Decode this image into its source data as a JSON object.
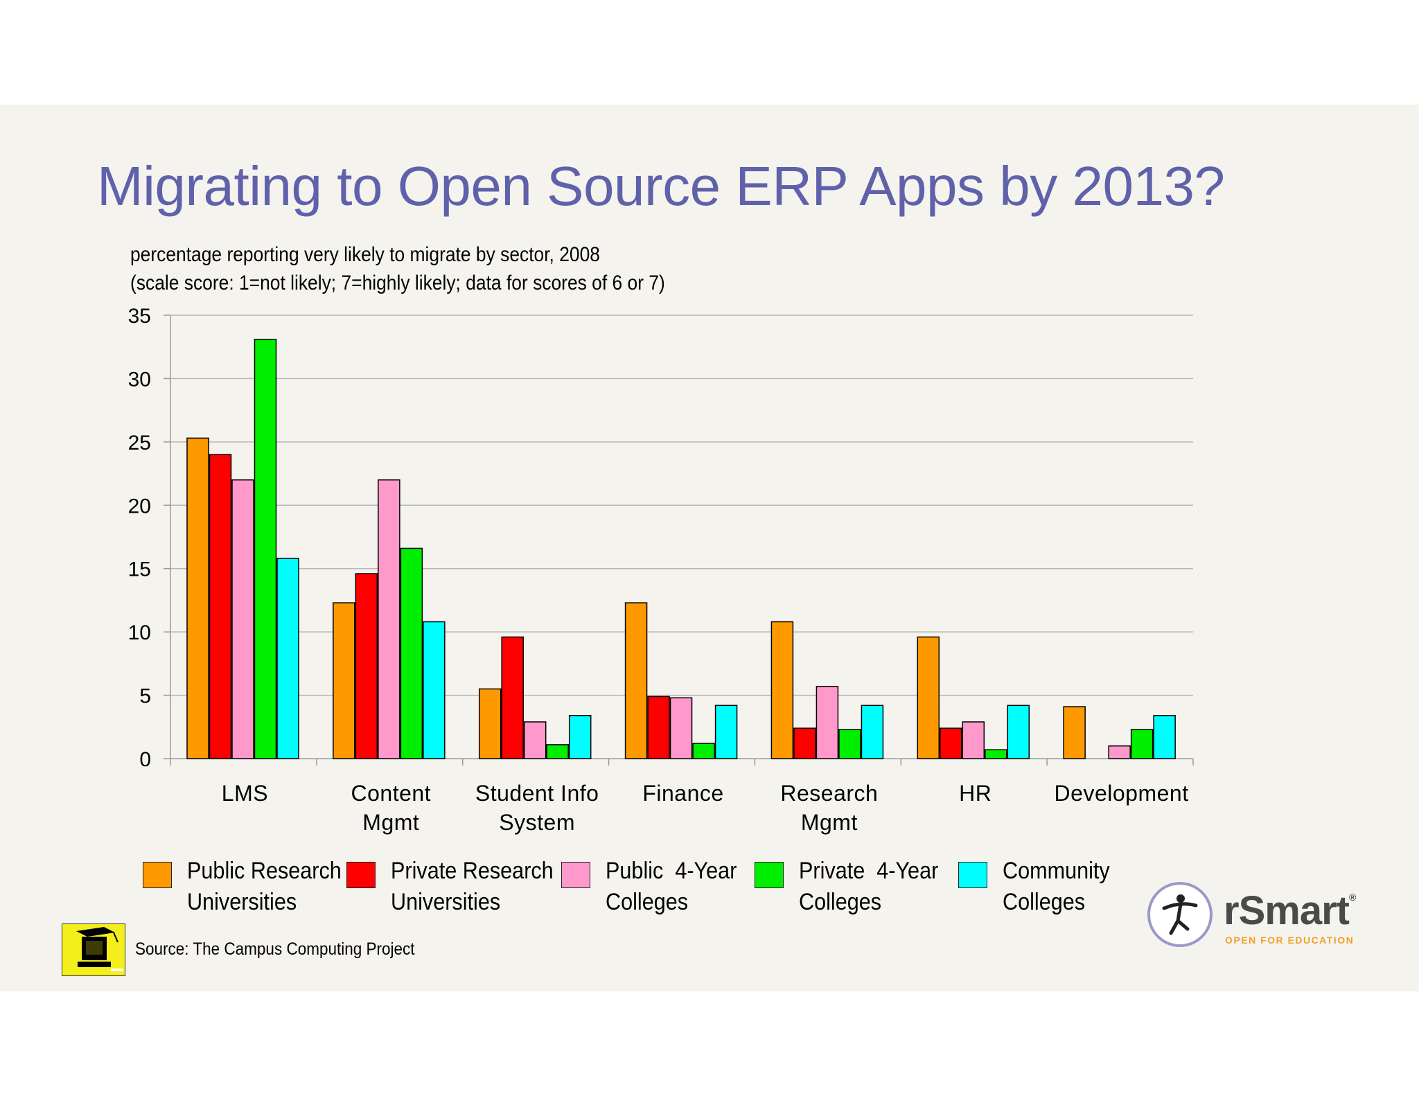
{
  "title": "Migrating to Open Source ERP Apps by 2013?",
  "subtitle_line1": "percentage reporting very likely to migrate by sector, 2008",
  "subtitle_line2": "(scale score: 1=not likely; 7=highly likely; data for scores of 6 or 7)",
  "source": "Source: The Campus Computing Project",
  "logo": {
    "name": "rSmart",
    "reg": "®",
    "tagline": "OPEN FOR EDUCATION"
  },
  "chart_data": {
    "type": "bar",
    "title": "Migrating to Open Source ERP Apps by 2013?",
    "xlabel": "",
    "ylabel": "",
    "ylim": [
      0,
      35
    ],
    "yticks": [
      0,
      5,
      10,
      15,
      20,
      25,
      30,
      35
    ],
    "grid": true,
    "legend_position": "bottom",
    "categories": [
      [
        "LMS"
      ],
      [
        "Content",
        "Mgmt"
      ],
      [
        "Student Info",
        "System"
      ],
      [
        "Finance"
      ],
      [
        "Research",
        "Mgmt"
      ],
      [
        "HR"
      ],
      [
        "Development"
      ]
    ],
    "series": [
      {
        "name": [
          "Public Research",
          "Universities"
        ],
        "color": "#ff9900",
        "values": [
          25.3,
          12.3,
          5.5,
          12.3,
          10.8,
          9.6,
          4.1
        ]
      },
      {
        "name": [
          "Private Research",
          "Universities"
        ],
        "color": "#ff0000",
        "values": [
          24.0,
          14.6,
          9.6,
          4.9,
          2.4,
          2.4,
          0
        ]
      },
      {
        "name": [
          "Public  4-Year",
          "Colleges"
        ],
        "color": "#ff99cc",
        "values": [
          22.0,
          22.0,
          2.9,
          4.8,
          5.7,
          2.9,
          1.0
        ]
      },
      {
        "name": [
          "Private  4-Year",
          "Colleges"
        ],
        "color": "#00ee00",
        "values": [
          33.1,
          16.6,
          1.1,
          1.2,
          2.3,
          0.7,
          2.3
        ]
      },
      {
        "name": [
          "Community",
          "Colleges"
        ],
        "color": "#00ffff",
        "values": [
          15.8,
          10.8,
          3.4,
          4.2,
          4.2,
          4.2,
          3.4
        ]
      }
    ]
  }
}
